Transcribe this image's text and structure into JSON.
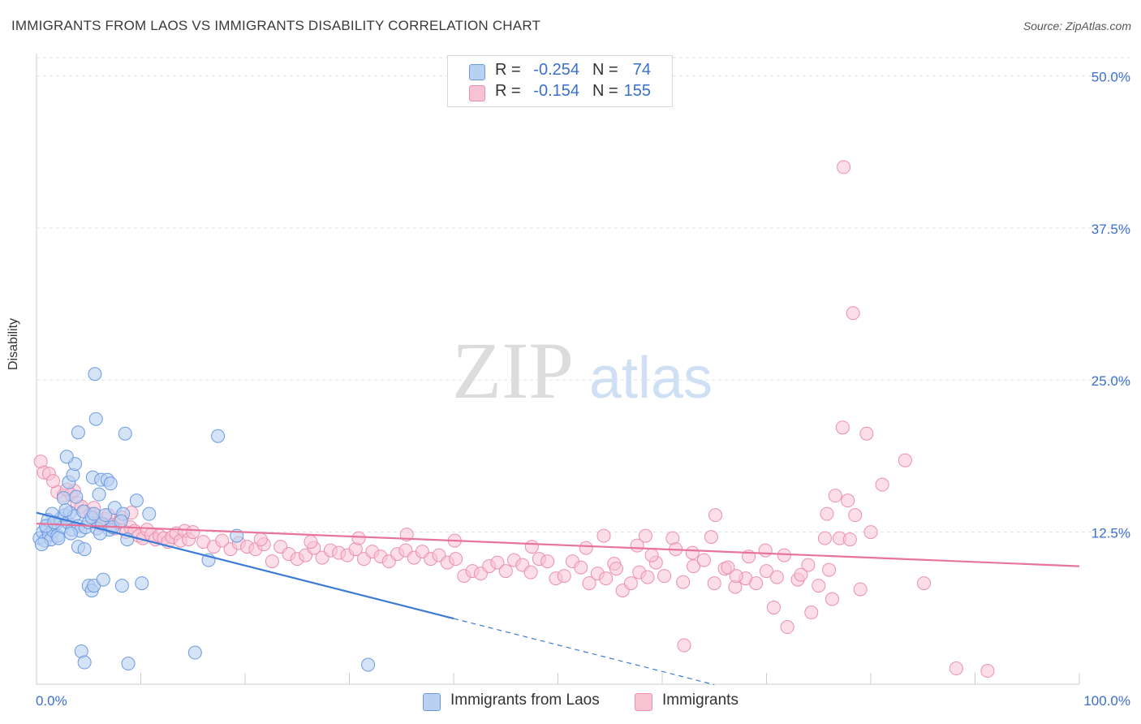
{
  "title": "IMMIGRANTS FROM LAOS VS IMMIGRANTS DISABILITY CORRELATION CHART",
  "source": "Source: ZipAtlas.com",
  "watermark": {
    "zip": "ZIP",
    "atlas": "atlas"
  },
  "legend_top": {
    "rows": [
      {
        "r_label": "R =",
        "r_value": "-0.254",
        "n_label": "N =",
        "n_value": "74"
      },
      {
        "r_label": "R =",
        "r_value": "-0.154",
        "n_label": "N =",
        "n_value": "155"
      }
    ]
  },
  "colors": {
    "laos_fill": "#b9d0f2",
    "laos_stroke": "#6b9ae0",
    "laos_line": "#3a7bd5",
    "imm_fill": "#f7c3d3",
    "imm_stroke": "#ec8fae",
    "imm_line": "#e8739b",
    "tick_label": "#3a6fd0",
    "grid": "#dde3ea"
  },
  "chart_data": {
    "type": "scatter",
    "title": "IMMIGRANTS FROM LAOS VS IMMIGRANTS DISABILITY CORRELATION CHART",
    "xlabel": "",
    "ylabel": "Disability",
    "xlim": [
      0,
      100
    ],
    "ylim": [
      0,
      51.5
    ],
    "x_tick_labels": [
      "0.0%",
      "100.0%"
    ],
    "y_ticks": [
      12.5,
      25.0,
      37.5,
      50.0
    ],
    "y_tick_labels": [
      "12.5%",
      "25.0%",
      "37.5%",
      "50.0%"
    ],
    "grid": true,
    "legend_position": "bottom",
    "series": [
      {
        "name": "Immigrants from Laos",
        "r": -0.254,
        "n": 74,
        "trend": {
          "x0": 0,
          "y0": 14.1,
          "x1": 40,
          "y1": 5.4,
          "dashed_to_x": 65
        },
        "points": [
          [
            0.3,
            12.0
          ],
          [
            0.6,
            12.5
          ],
          [
            0.8,
            11.8
          ],
          [
            1.0,
            12.8
          ],
          [
            1.2,
            12.3
          ],
          [
            1.4,
            11.9
          ],
          [
            1.6,
            12.6
          ],
          [
            1.8,
            13.1
          ],
          [
            2.0,
            12.2
          ],
          [
            2.3,
            13.6
          ],
          [
            2.5,
            12.9
          ],
          [
            2.7,
            13.9
          ],
          [
            3.0,
            13.3
          ],
          [
            3.2,
            14.1
          ],
          [
            3.4,
            12.7
          ],
          [
            3.6,
            13.8
          ],
          [
            3.8,
            15.4
          ],
          [
            4.0,
            13.0
          ],
          [
            4.2,
            12.6
          ],
          [
            4.5,
            14.2
          ],
          [
            4.7,
            12.9
          ],
          [
            5.0,
            13.3
          ],
          [
            5.3,
            13.7
          ],
          [
            5.5,
            14.0
          ],
          [
            5.8,
            12.8
          ],
          [
            6.0,
            15.6
          ],
          [
            6.3,
            13.2
          ],
          [
            6.6,
            13.9
          ],
          [
            7.0,
            12.7
          ],
          [
            7.5,
            14.5
          ],
          [
            1.5,
            14.0
          ],
          [
            2.6,
            15.3
          ],
          [
            3.1,
            16.6
          ],
          [
            3.5,
            17.2
          ],
          [
            3.7,
            18.1
          ],
          [
            2.9,
            18.7
          ],
          [
            4.0,
            20.7
          ],
          [
            5.6,
            25.5
          ],
          [
            5.7,
            21.8
          ],
          [
            8.5,
            20.6
          ],
          [
            17.4,
            20.4
          ],
          [
            5.4,
            17.0
          ],
          [
            6.2,
            16.8
          ],
          [
            6.8,
            16.8
          ],
          [
            7.1,
            16.5
          ],
          [
            9.6,
            15.1
          ],
          [
            8.3,
            14.0
          ],
          [
            10.8,
            14.0
          ],
          [
            4.0,
            11.3
          ],
          [
            4.6,
            11.1
          ],
          [
            8.7,
            11.9
          ],
          [
            16.5,
            10.2
          ],
          [
            19.2,
            12.2
          ],
          [
            6.1,
            12.4
          ],
          [
            7.3,
            12.9
          ],
          [
            8.1,
            13.4
          ],
          [
            5.0,
            8.1
          ],
          [
            5.3,
            7.7
          ],
          [
            5.5,
            8.1
          ],
          [
            6.4,
            8.6
          ],
          [
            8.2,
            8.1
          ],
          [
            10.1,
            8.3
          ],
          [
            4.3,
            2.7
          ],
          [
            4.6,
            1.8
          ],
          [
            8.8,
            1.7
          ],
          [
            15.2,
            2.6
          ],
          [
            31.8,
            1.6
          ],
          [
            1.1,
            13.5
          ],
          [
            2.1,
            12.0
          ],
          [
            0.9,
            13.0
          ],
          [
            3.3,
            12.4
          ],
          [
            1.7,
            13.3
          ],
          [
            0.5,
            11.5
          ],
          [
            2.8,
            14.3
          ]
        ]
      },
      {
        "name": "Immigrants",
        "r": -0.154,
        "n": 155,
        "trend": {
          "x0": 0,
          "y0": 13.2,
          "x1": 100,
          "y1": 9.7
        },
        "points": [
          [
            0.4,
            18.3
          ],
          [
            0.7,
            17.4
          ],
          [
            1.2,
            17.3
          ],
          [
            2.0,
            15.8
          ],
          [
            2.6,
            15.5
          ],
          [
            3.3,
            15.6
          ],
          [
            3.6,
            15.9
          ],
          [
            3.9,
            14.9
          ],
          [
            4.3,
            14.6
          ],
          [
            4.6,
            14.2
          ],
          [
            5.2,
            14.0
          ],
          [
            5.5,
            14.5
          ],
          [
            5.9,
            13.3
          ],
          [
            6.3,
            13.1
          ],
          [
            6.6,
            13.6
          ],
          [
            6.9,
            13.9
          ],
          [
            7.2,
            13.1
          ],
          [
            7.5,
            12.8
          ],
          [
            7.9,
            13.3
          ],
          [
            8.2,
            13.7
          ],
          [
            8.6,
            12.5
          ],
          [
            9.0,
            12.9
          ],
          [
            9.4,
            12.6
          ],
          [
            9.8,
            12.2
          ],
          [
            10.2,
            12.0
          ],
          [
            10.6,
            12.7
          ],
          [
            11.0,
            12.3
          ],
          [
            11.4,
            11.9
          ],
          [
            11.8,
            12.2
          ],
          [
            12.2,
            12.0
          ],
          [
            12.6,
            11.7
          ],
          [
            13.0,
            12.1
          ],
          [
            13.4,
            12.4
          ],
          [
            13.8,
            11.8
          ],
          [
            14.2,
            12.6
          ],
          [
            14.6,
            11.9
          ],
          [
            15.0,
            12.5
          ],
          [
            16.0,
            11.7
          ],
          [
            17.0,
            11.3
          ],
          [
            17.8,
            11.8
          ],
          [
            18.6,
            11.1
          ],
          [
            19.4,
            11.6
          ],
          [
            20.2,
            11.3
          ],
          [
            21.0,
            11.1
          ],
          [
            21.8,
            11.5
          ],
          [
            22.6,
            10.1
          ],
          [
            23.4,
            11.3
          ],
          [
            24.2,
            10.7
          ],
          [
            25.0,
            10.3
          ],
          [
            25.8,
            10.6
          ],
          [
            26.6,
            11.2
          ],
          [
            27.4,
            10.4
          ],
          [
            28.2,
            11.0
          ],
          [
            29.0,
            10.8
          ],
          [
            29.8,
            10.6
          ],
          [
            30.6,
            11.1
          ],
          [
            31.4,
            10.3
          ],
          [
            32.2,
            10.9
          ],
          [
            33.0,
            10.5
          ],
          [
            33.8,
            10.1
          ],
          [
            34.6,
            10.7
          ],
          [
            35.4,
            11.0
          ],
          [
            36.2,
            10.4
          ],
          [
            37.0,
            10.9
          ],
          [
            37.8,
            10.3
          ],
          [
            38.6,
            10.6
          ],
          [
            39.4,
            10.0
          ],
          [
            40.2,
            10.3
          ],
          [
            41.0,
            8.9
          ],
          [
            41.8,
            9.3
          ],
          [
            42.6,
            9.1
          ],
          [
            43.4,
            9.7
          ],
          [
            44.2,
            10.0
          ],
          [
            45.0,
            9.3
          ],
          [
            45.8,
            10.2
          ],
          [
            46.6,
            9.8
          ],
          [
            47.4,
            9.2
          ],
          [
            48.2,
            10.3
          ],
          [
            49.0,
            10.1
          ],
          [
            49.8,
            8.7
          ],
          [
            50.6,
            8.9
          ],
          [
            51.4,
            10.1
          ],
          [
            52.2,
            9.6
          ],
          [
            53.0,
            8.3
          ],
          [
            53.8,
            9.1
          ],
          [
            54.6,
            8.7
          ],
          [
            55.4,
            9.9
          ],
          [
            56.2,
            7.7
          ],
          [
            57.0,
            8.3
          ],
          [
            57.8,
            9.2
          ],
          [
            58.6,
            8.8
          ],
          [
            59.4,
            10.0
          ],
          [
            60.2,
            8.9
          ],
          [
            61.0,
            12.0
          ],
          [
            62.0,
            8.4
          ],
          [
            63.0,
            9.7
          ],
          [
            64.0,
            10.2
          ],
          [
            65.0,
            8.3
          ],
          [
            66.0,
            9.5
          ],
          [
            67.0,
            8.0
          ],
          [
            68.0,
            8.7
          ],
          [
            69.0,
            8.3
          ],
          [
            70.0,
            9.3
          ],
          [
            71.0,
            8.8
          ],
          [
            72.0,
            4.7
          ],
          [
            73.0,
            8.6
          ],
          [
            74.0,
            9.8
          ],
          [
            75.0,
            8.1
          ],
          [
            76.0,
            9.4
          ],
          [
            77.0,
            12.0
          ],
          [
            78.0,
            11.9
          ],
          [
            79.0,
            7.8
          ],
          [
            80.0,
            12.5
          ],
          [
            40.1,
            11.8
          ],
          [
            35.5,
            12.3
          ],
          [
            30.9,
            12.0
          ],
          [
            26.3,
            11.7
          ],
          [
            21.5,
            11.9
          ],
          [
            47.5,
            11.3
          ],
          [
            52.7,
            11.2
          ],
          [
            57.6,
            11.4
          ],
          [
            59.0,
            10.6
          ],
          [
            64.7,
            12.1
          ],
          [
            66.3,
            9.6
          ],
          [
            76.3,
            7.0
          ],
          [
            74.3,
            5.9
          ],
          [
            70.7,
            6.3
          ],
          [
            62.1,
            3.2
          ],
          [
            54.4,
            12.2
          ],
          [
            55.6,
            9.5
          ],
          [
            58.4,
            12.2
          ],
          [
            61.3,
            11.1
          ],
          [
            62.9,
            10.8
          ],
          [
            65.1,
            13.9
          ],
          [
            67.1,
            8.9
          ],
          [
            68.3,
            10.5
          ],
          [
            69.9,
            11.0
          ],
          [
            71.7,
            10.6
          ],
          [
            73.3,
            9.0
          ],
          [
            75.6,
            12.0
          ],
          [
            77.8,
            15.1
          ],
          [
            83.3,
            18.4
          ],
          [
            79.6,
            20.6
          ],
          [
            77.3,
            21.1
          ],
          [
            76.6,
            15.5
          ],
          [
            75.8,
            14.0
          ],
          [
            81.1,
            16.4
          ],
          [
            78.5,
            13.9
          ],
          [
            85.1,
            8.3
          ],
          [
            88.2,
            1.3
          ],
          [
            91.2,
            1.1
          ],
          [
            77.4,
            42.5
          ],
          [
            78.3,
            30.5
          ],
          [
            1.6,
            16.7
          ],
          [
            2.9,
            16.0
          ],
          [
            6.0,
            13.2
          ],
          [
            9.1,
            14.1
          ]
        ]
      }
    ]
  },
  "x_axis": {
    "left_label": "0.0%",
    "right_label": "100.0%"
  }
}
